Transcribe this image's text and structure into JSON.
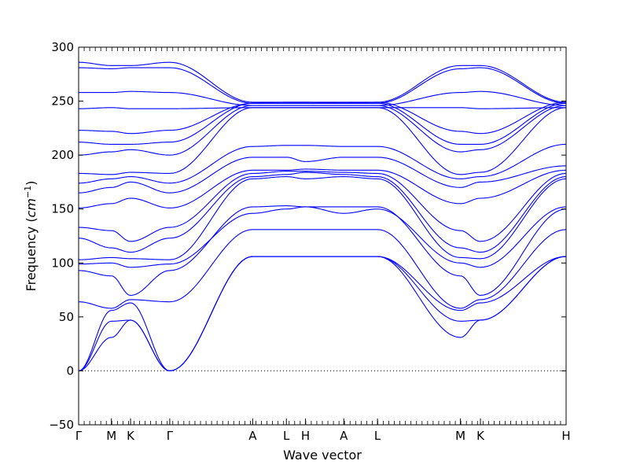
{
  "chart_data": {
    "type": "line",
    "title": "",
    "xlabel": "Wave vector",
    "ylabel_prefix": "Frequency (",
    "ylabel_unit_base": "cm",
    "ylabel_unit_exp": "−1",
    "ylabel_suffix": ")",
    "ylim": [
      -50,
      300
    ],
    "yticks": [
      -50,
      0,
      50,
      100,
      150,
      200,
      250,
      300
    ],
    "ytick_labels": [
      "−50",
      "0",
      "50",
      "100",
      "150",
      "200",
      "250",
      "300"
    ],
    "xlim": [
      0,
      5.35
    ],
    "high_symmetry_points": [
      {
        "label": "Γ",
        "x": 0.0
      },
      {
        "label": "M",
        "x": 0.36
      },
      {
        "label": "K",
        "x": 0.57
      },
      {
        "label": "Γ",
        "x": 1.0
      },
      {
        "label": "A",
        "x": 1.91
      },
      {
        "label": "L",
        "x": 2.28
      },
      {
        "label": "H",
        "x": 2.49
      },
      {
        "label": "A",
        "x": 2.91
      },
      {
        "label": "L",
        "x": 3.28
      },
      {
        "label": "M",
        "x": 4.19
      },
      {
        "label": "K",
        "x": 4.41
      },
      {
        "label": "H",
        "x": 5.35
      }
    ],
    "zero_line": {
      "y": 0,
      "style": "dotted"
    },
    "line_color": "#0000ff",
    "band_count": 36,
    "band_representative_values": [
      {
        "Γ": 0,
        "M": 31,
        "K": 47,
        "Γ2": 0,
        "A": 106,
        "L": 106,
        "H": 106,
        "A2": 106,
        "L2": 106,
        "M2": 31,
        "K2": 47,
        "H2": 106
      },
      {
        "Γ": 0,
        "M": 46,
        "K": 47,
        "Γ2": 0,
        "A": 106,
        "L": 106,
        "H": 106,
        "A2": 106,
        "L2": 106,
        "M2": 46,
        "K2": 47,
        "H2": 106
      },
      {
        "Γ": 0,
        "M": 56,
        "K": 63,
        "Γ2": 0,
        "A": 106,
        "L": 106,
        "H": 106,
        "A2": 106,
        "L2": 106,
        "M2": 56,
        "K2": 63,
        "H2": 106
      },
      {
        "Γ": 64,
        "M": 58,
        "K": 66,
        "Γ2": 64,
        "A": 131,
        "L": 131,
        "H": 131,
        "A2": 131,
        "L2": 131,
        "M2": 58,
        "K2": 66,
        "H2": 131
      },
      {
        "Γ": 93,
        "M": 88,
        "K": 70,
        "Γ2": 93,
        "A": 152,
        "L": 153,
        "H": 152,
        "A2": 152,
        "L2": 152,
        "M2": 88,
        "K2": 70,
        "H2": 150
      },
      {
        "Γ": 99,
        "M": 100,
        "K": 96,
        "Γ2": 99,
        "A": 146,
        "L": 150,
        "H": 152,
        "A2": 146,
        "L2": 150,
        "M2": 100,
        "K2": 96,
        "H2": 152
      },
      {
        "Γ": 103,
        "M": 105,
        "K": 104,
        "Γ2": 103,
        "A": 178,
        "L": 180,
        "H": 178,
        "A2": 180,
        "L2": 178,
        "M2": 105,
        "K2": 104,
        "H2": 178
      },
      {
        "Γ": 123,
        "M": 114,
        "K": 110,
        "Γ2": 123,
        "A": 180,
        "L": 182,
        "H": 184,
        "A2": 182,
        "L2": 180,
        "M2": 114,
        "K2": 110,
        "H2": 180
      },
      {
        "Γ": 133,
        "M": 130,
        "K": 120,
        "Γ2": 133,
        "A": 183,
        "L": 185,
        "H": 185,
        "A2": 184,
        "L2": 183,
        "M2": 130,
        "K2": 120,
        "H2": 183
      },
      {
        "Γ": 151,
        "M": 155,
        "K": 160,
        "Γ2": 151,
        "A": 186,
        "L": 186,
        "H": 187,
        "A2": 186,
        "L2": 186,
        "M2": 155,
        "K2": 160,
        "H2": 186
      },
      {
        "Γ": 165,
        "M": 170,
        "K": 175,
        "Γ2": 165,
        "A": 198,
        "L": 198,
        "H": 194,
        "A2": 198,
        "L2": 198,
        "M2": 170,
        "K2": 175,
        "H2": 190
      },
      {
        "Γ": 174,
        "M": 178,
        "K": 180,
        "Γ2": 174,
        "A": 208,
        "L": 209,
        "H": 209,
        "A2": 208,
        "L2": 208,
        "M2": 178,
        "K2": 180,
        "H2": 210
      },
      {
        "Γ": 183,
        "M": 182,
        "K": 184,
        "Γ2": 183,
        "A": 244,
        "L": 244,
        "H": 244,
        "A2": 244,
        "L2": 244,
        "M2": 182,
        "K2": 184,
        "H2": 244
      },
      {
        "Γ": 200,
        "M": 203,
        "K": 205,
        "Γ2": 200,
        "A": 246,
        "L": 246,
        "H": 246,
        "A2": 246,
        "L2": 246,
        "M2": 203,
        "K2": 205,
        "H2": 246
      },
      {
        "Γ": 212,
        "M": 210,
        "K": 210,
        "Γ2": 212,
        "A": 248,
        "L": 248,
        "H": 248,
        "A2": 248,
        "L2": 248,
        "M2": 210,
        "K2": 210,
        "H2": 248
      },
      {
        "Γ": 223,
        "M": 222,
        "K": 220,
        "Γ2": 223,
        "A": 248,
        "L": 249,
        "H": 249,
        "A2": 248,
        "L2": 249,
        "M2": 222,
        "K2": 220,
        "H2": 249
      },
      {
        "Γ": 243,
        "M": 244,
        "K": 243,
        "Γ2": 243,
        "A": 244,
        "L": 244,
        "H": 244,
        "A2": 244,
        "L2": 244,
        "M2": 244,
        "K2": 243,
        "H2": 244
      },
      {
        "Γ": 258,
        "M": 258,
        "K": 259,
        "Γ2": 258,
        "A": 246,
        "L": 246,
        "H": 246,
        "A2": 246,
        "L2": 246,
        "M2": 258,
        "K2": 259,
        "H2": 246
      },
      {
        "Γ": 281,
        "M": 280,
        "K": 281,
        "Γ2": 281,
        "A": 248,
        "L": 248,
        "H": 248,
        "A2": 248,
        "L2": 248,
        "M2": 280,
        "K2": 281,
        "H2": 248
      },
      {
        "Γ": 286,
        "M": 283,
        "K": 283,
        "Γ2": 286,
        "A": 249,
        "L": 249,
        "H": 249,
        "A2": 249,
        "L2": 249,
        "M2": 283,
        "K2": 283,
        "H2": 249
      }
    ]
  }
}
